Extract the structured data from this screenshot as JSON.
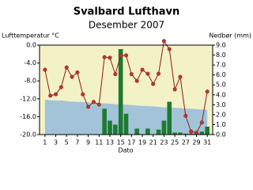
{
  "chart_data": {
    "type": "combo",
    "title": "Svalbard Lufthavn",
    "subtitle": "Desember 2007",
    "ylabel": "Lufttemperatur °C",
    "y2label": "Nedbør (mm)",
    "xlabel": "Dato",
    "x": [
      1,
      2,
      3,
      4,
      5,
      6,
      7,
      8,
      9,
      10,
      11,
      12,
      13,
      14,
      15,
      16,
      17,
      18,
      19,
      20,
      21,
      22,
      23,
      24,
      25,
      26,
      27,
      28,
      29,
      30,
      31
    ],
    "xlim": [
      0,
      32
    ],
    "xticks": [
      1,
      3,
      5,
      7,
      9,
      11,
      13,
      15,
      17,
      19,
      21,
      23,
      25,
      27,
      29,
      31
    ],
    "ylim": [
      -20,
      0
    ],
    "yticks": [
      {
        "value": -20,
        "label": "-20.0"
      },
      {
        "value": -16,
        "label": "-16.0"
      },
      {
        "value": -12,
        "label": "-12.0"
      },
      {
        "value": -8,
        "label": "-8.0"
      },
      {
        "value": -4,
        "label": "-4.0"
      },
      {
        "value": 0,
        "label": "0.0"
      }
    ],
    "y2lim": [
      0,
      9
    ],
    "y2ticks": [
      {
        "value": 0,
        "label": "0.0"
      },
      {
        "value": 1,
        "label": "1.0"
      },
      {
        "value": 2,
        "label": "2.0"
      },
      {
        "value": 3,
        "label": "3.0"
      },
      {
        "value": 4,
        "label": "4.0"
      },
      {
        "value": 5,
        "label": "5.0"
      },
      {
        "value": 6,
        "label": "6.0"
      },
      {
        "value": 7,
        "label": "7.0"
      },
      {
        "value": 8,
        "label": "8.0"
      },
      {
        "value": 9,
        "label": "9.0"
      }
    ],
    "background": "#f3f1c6",
    "series": [
      {
        "type": "area",
        "color": "#a3c4d8",
        "values": [
          -12.2,
          -12.3,
          -12.4,
          -12.4,
          -12.5,
          -12.6,
          -12.7,
          -12.7,
          -12.8,
          -12.9,
          -13.0,
          -13.0,
          -13.1,
          -13.2,
          -13.3,
          -13.3,
          -13.4,
          -13.5,
          -13.6,
          -13.6,
          -13.7,
          -13.8,
          -13.9,
          -13.9,
          -14.0,
          -14.1,
          -14.2,
          -14.2,
          -14.3,
          -14.4,
          -14.5
        ]
      },
      {
        "type": "bar",
        "axis": "y2",
        "color": "#1d7a30",
        "values": [
          0,
          0,
          0,
          0,
          0,
          0,
          0,
          0,
          0,
          0,
          0,
          2.6,
          1.4,
          1.0,
          8.6,
          2.1,
          0,
          0.6,
          0,
          0.6,
          0,
          0.5,
          1.4,
          3.3,
          0.2,
          0.2,
          0.1,
          0.1,
          0.1,
          0.3,
          0.8
        ]
      },
      {
        "type": "line",
        "color": "#8b1a1a",
        "values": [
          -5.5,
          -11.3,
          -11.0,
          -9.4,
          -5.0,
          -7.1,
          -6.1,
          -11.0,
          -13.8,
          -12.7,
          -13.3,
          -2.7,
          -2.8,
          -6.5,
          -2.3,
          -2.3,
          -6.5,
          -8.0,
          -5.5,
          -6.4,
          -8.7,
          -6.4,
          0.9,
          -0.9,
          -9.9,
          -7.1,
          -15.8,
          -19.3,
          -19.6,
          -17.3,
          -10.4
        ]
      }
    ]
  }
}
